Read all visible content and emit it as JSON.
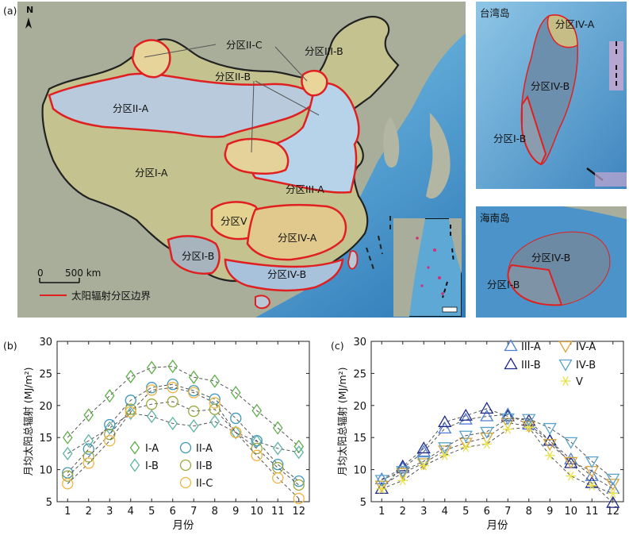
{
  "panel_labels": {
    "a": "(a)",
    "b": "(b)",
    "c": "(c)"
  },
  "map": {
    "north": "N",
    "scale_zero": "0",
    "scale_dist": "500 km",
    "legend_text": "太阳辐射分区边界",
    "taiwan_title": "台湾岛",
    "hainan_title": "海南岛",
    "zones": {
      "IA": "分区I-A",
      "IB": "分区I-B",
      "IIA": "分区II-A",
      "IIB": "分区II-B",
      "IIC": "分区II-C",
      "IIIA": "分区III-A",
      "IIIB": "分区III-B",
      "IVA": "分区IV-A",
      "IVB": "分区IV-B",
      "V": "分区V"
    },
    "tw": {
      "IVA": "分区IV-A",
      "IVB": "分区IV-B",
      "IB": "分区I-B"
    },
    "hn": {
      "IVB": "分区IV-B",
      "IB": "分区I-B"
    },
    "colors": {
      "sea_deep": "#3f86bf",
      "sea_shallow": "#7fc0e2",
      "land": "#a8ad9b",
      "boundary": "#e02020",
      "zone_IA": "#c7c48e",
      "zone_IIA": "#b9cbdc",
      "zone_IIC": "#e9d59a"
    }
  },
  "chart_data": [
    {
      "type": "scatter",
      "xlabel": "月份",
      "ylabel": "月均太阳总辐射 (MJ/m²)",
      "xlim": [
        0.5,
        12.5
      ],
      "ylim": [
        5,
        30
      ],
      "xticks": [
        "1",
        "2",
        "3",
        "4",
        "5",
        "6",
        "7",
        "8",
        "9",
        "10",
        "11",
        "12"
      ],
      "yticks": [
        "5",
        "10",
        "15",
        "20",
        "25",
        "30"
      ],
      "x": [
        1,
        2,
        3,
        4,
        5,
        6,
        7,
        8,
        9,
        10,
        11,
        12
      ],
      "series": [
        {
          "name": "I-A",
          "marker": "diamond",
          "color": "#5fae4a",
          "values": [
            15.0,
            18.5,
            21.5,
            24.5,
            25.9,
            26.1,
            24.4,
            23.8,
            22.0,
            19.2,
            16.5,
            13.6
          ]
        },
        {
          "name": "I-B",
          "marker": "diamond",
          "color": "#5fb3a6",
          "values": [
            12.5,
            14.5,
            16.5,
            18.8,
            18.3,
            17.2,
            16.8,
            17.5,
            15.8,
            14.4,
            13.3,
            12.7
          ]
        },
        {
          "name": "II-A",
          "marker": "circle",
          "color": "#3f97b8",
          "values": [
            9.5,
            13.2,
            17.0,
            20.8,
            22.8,
            23.3,
            22.3,
            21.0,
            18.0,
            14.5,
            10.8,
            8.2
          ]
        },
        {
          "name": "II-B",
          "marker": "circle",
          "color": "#9ba83c",
          "values": [
            9.0,
            12.0,
            15.5,
            19.4,
            20.2,
            20.6,
            19.1,
            19.4,
            15.8,
            13.3,
            10.3,
            7.6
          ]
        },
        {
          "name": "II-C",
          "marker": "circle",
          "color": "#f2b441",
          "values": [
            7.8,
            11.0,
            14.5,
            19.0,
            22.4,
            22.8,
            22.0,
            20.4,
            15.8,
            12.2,
            8.7,
            5.5
          ]
        }
      ]
    },
    {
      "type": "scatter",
      "xlabel": "月份",
      "ylabel": "月均太阳总辐射 (MJ/m²)",
      "xlim": [
        0.5,
        12.5
      ],
      "ylim": [
        5,
        30
      ],
      "xticks": [
        "1",
        "2",
        "3",
        "4",
        "5",
        "6",
        "7",
        "8",
        "9",
        "10",
        "11",
        "12"
      ],
      "yticks": [
        "5",
        "10",
        "15",
        "20",
        "25",
        "30"
      ],
      "x": [
        1,
        2,
        3,
        4,
        5,
        6,
        7,
        8,
        9,
        10,
        11,
        12
      ],
      "series": [
        {
          "name": "III-A",
          "marker": "triangle-up",
          "color": "#4f7fd8",
          "values": [
            8.5,
            10.2,
            12.8,
            16.4,
            17.8,
            18.3,
            18.6,
            17.0,
            14.5,
            11.6,
            9.0,
            7.0
          ]
        },
        {
          "name": "III-B",
          "marker": "triangle-up",
          "color": "#1f2a8a",
          "values": [
            7.0,
            10.5,
            13.3,
            17.4,
            18.4,
            19.5,
            18.3,
            17.6,
            14.5,
            11.0,
            7.9,
            4.8
          ]
        },
        {
          "name": "IV-A",
          "marker": "triangle-down",
          "color": "#d9a335",
          "values": [
            7.5,
            9.5,
            11.0,
            13.0,
            14.2,
            15.0,
            17.3,
            16.8,
            14.0,
            11.2,
            9.8,
            7.8
          ]
        },
        {
          "name": "IV-B",
          "marker": "triangle-down",
          "color": "#5aa2c8",
          "values": [
            8.4,
            9.8,
            11.3,
            13.5,
            15.3,
            15.9,
            18.0,
            17.9,
            16.5,
            14.3,
            11.3,
            8.6
          ]
        },
        {
          "name": "V",
          "marker": "asterisk",
          "color": "#e9e24a",
          "values": [
            7.0,
            8.3,
            10.6,
            12.2,
            13.5,
            14.0,
            16.3,
            16.6,
            12.2,
            9.0,
            7.5,
            6.3
          ]
        }
      ]
    }
  ]
}
